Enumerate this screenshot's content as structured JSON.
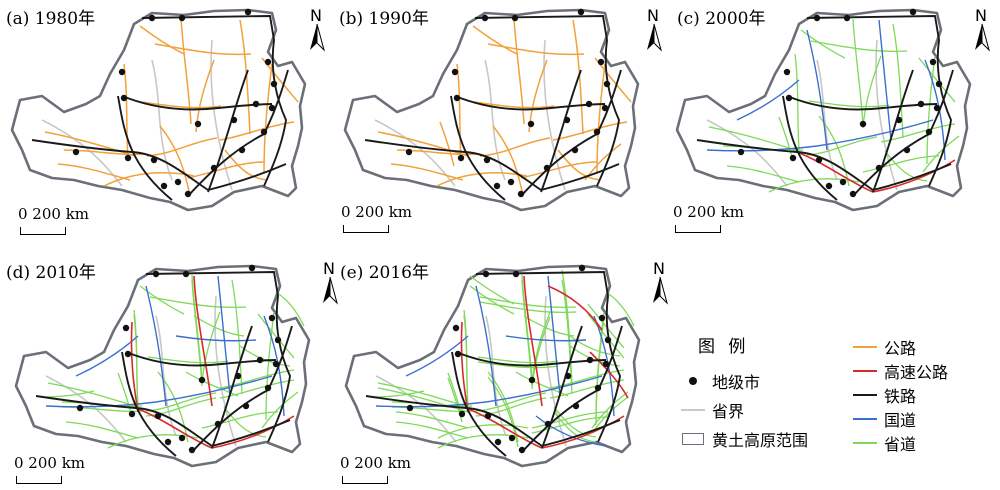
{
  "colors": {
    "highway": "#f2a13b",
    "expressway": "#d9292b",
    "railway": "#1a1a1a",
    "national_road": "#3b6fcf",
    "provincial_road": "#7ed957",
    "province_border": "#c8c8c8",
    "plateau_boundary": "#6b6f77",
    "city": "#111111"
  },
  "panels": [
    {
      "title": "(a) 1980年",
      "scale_label": "0  200 km",
      "north_label": "N",
      "layers": [
        "highway",
        "railway"
      ]
    },
    {
      "title": "(b) 1990年",
      "scale_label": "0  200 km",
      "north_label": "N",
      "layers": [
        "highway",
        "railway"
      ]
    },
    {
      "title": "(c) 2000年",
      "scale_label": "0  200 km",
      "north_label": "N",
      "layers": [
        "provincial_road",
        "national_road",
        "expressway",
        "railway"
      ]
    },
    {
      "title": "(d) 2010年",
      "scale_label": "0  200 km",
      "north_label": "N",
      "layers": [
        "provincial_road",
        "national_road",
        "expressway",
        "railway"
      ]
    },
    {
      "title": "(e) 2016年",
      "scale_label": "0  200 km",
      "north_label": "N",
      "layers": [
        "provincial_road",
        "national_road",
        "expressway",
        "railway"
      ]
    }
  ],
  "legend": {
    "title": "图 例",
    "items": [
      {
        "key": "city",
        "label": "地级市",
        "symbol": "dot"
      },
      {
        "key": "province_border",
        "label": "省界",
        "symbol": "line"
      },
      {
        "key": "plateau_boundary",
        "label": "黄土高原范围",
        "symbol": "box"
      },
      {
        "key": "highway",
        "label": "公路",
        "symbol": "line"
      },
      {
        "key": "expressway",
        "label": "高速公路",
        "symbol": "line"
      },
      {
        "key": "railway",
        "label": "铁路",
        "symbol": "line"
      },
      {
        "key": "national_road",
        "label": "国道",
        "symbol": "line"
      },
      {
        "key": "provincial_road",
        "label": "省道",
        "symbol": "line"
      }
    ]
  }
}
